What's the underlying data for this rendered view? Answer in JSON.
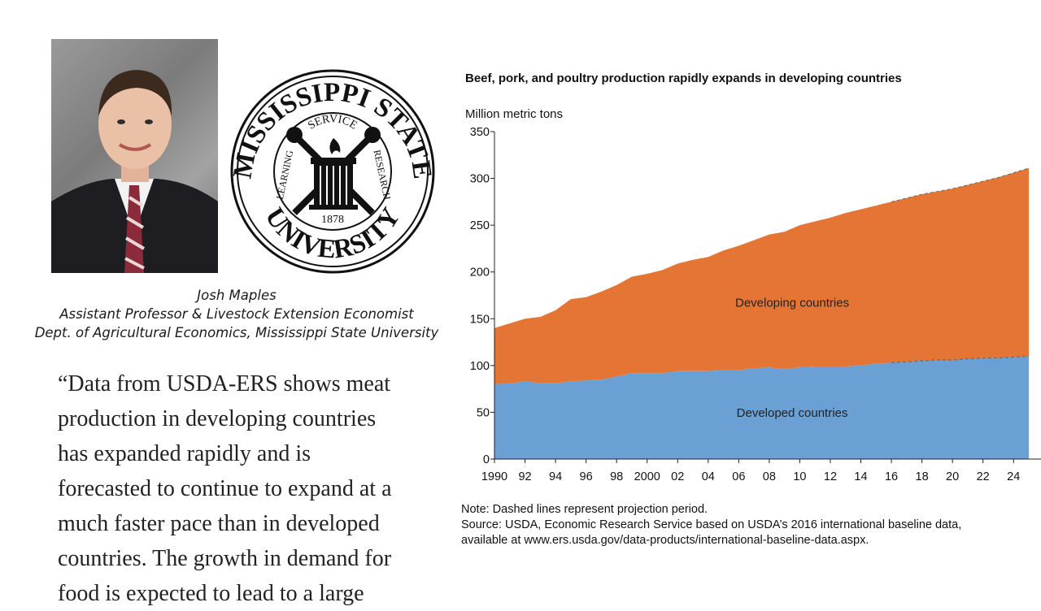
{
  "person": {
    "name": "Josh Maples",
    "title": "Assistant Professor & Livestock Extension Economist",
    "department": "Dept. of Agricultural Economics, Mississippi State University"
  },
  "seal": {
    "top_text": "MISSISSIPPI STATE",
    "bottom_text": "UNIVERSITY",
    "service": "SERVICE",
    "learning": "LEARNING",
    "research": "RESEARCH",
    "year": "1878"
  },
  "quote_lines": [
    "“Data from USDA-ERS shows meat",
    "production in developing countries",
    "has expanded rapidly and is",
    "forecasted to continue to expand at a",
    "much faster pace than in developed",
    "countries. The growth in demand for",
    "food is expected to lead to a large"
  ],
  "chart_data": {
    "type": "area",
    "title": "Beef, pork, and poultry production rapidly expands in developing countries",
    "ylabel": "Million metric tons",
    "ylim": [
      0,
      350
    ],
    "yticks": [
      0,
      50,
      100,
      150,
      200,
      250,
      300,
      350
    ],
    "x": [
      1990,
      1991,
      1992,
      1993,
      1994,
      1995,
      1996,
      1997,
      1998,
      1999,
      2000,
      2001,
      2002,
      2003,
      2004,
      2005,
      2006,
      2007,
      2008,
      2009,
      2010,
      2011,
      2012,
      2013,
      2014,
      2015,
      2016,
      2017,
      2018,
      2019,
      2020,
      2021,
      2022,
      2023,
      2024,
      2025
    ],
    "xtick_labels": [
      "1990",
      "92",
      "94",
      "96",
      "98",
      "2000",
      "02",
      "04",
      "06",
      "08",
      "10",
      "12",
      "14",
      "16",
      "18",
      "20",
      "22",
      "24"
    ],
    "projection_start": 2016,
    "series": [
      {
        "name": "Developed countries",
        "color": "#6aa0d4",
        "values": [
          80,
          81,
          83,
          81,
          81,
          83,
          84,
          85,
          88,
          92,
          92,
          92,
          94,
          94,
          94,
          95,
          95,
          97,
          98,
          96,
          98,
          99,
          99,
          99,
          100,
          102,
          103,
          104,
          105,
          106,
          106,
          107,
          108,
          108,
          109,
          110
        ]
      },
      {
        "name": "Developing countries",
        "color": "#e47535",
        "values": [
          60,
          64,
          67,
          71,
          78,
          88,
          89,
          94,
          98,
          103,
          106,
          110,
          115,
          119,
          122,
          128,
          133,
          137,
          142,
          147,
          152,
          155,
          159,
          164,
          167,
          169,
          172,
          175,
          178,
          180,
          183,
          186,
          189,
          193,
          197,
          201
        ]
      }
    ],
    "area_labels": [
      "Developing countries",
      "Developed countries"
    ],
    "note": "Note: Dashed lines represent projection period.",
    "source_lines": [
      "Source: USDA, Economic Research Service based on USDA’s 2016 international baseline data,",
      "available at www.ers.usda.gov/data-products/international-baseline-data.aspx."
    ]
  }
}
